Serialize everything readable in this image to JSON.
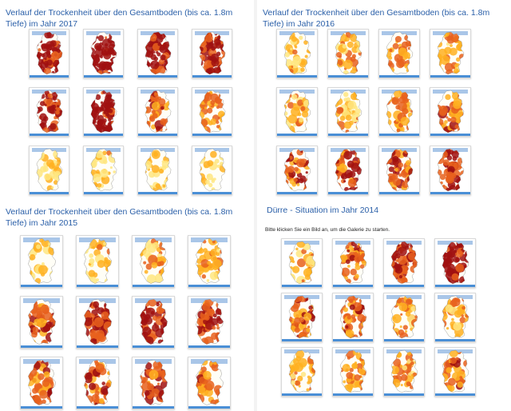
{
  "colors": {
    "title": "#2a5fa8",
    "none": "#fffef6",
    "low": "#ffe680",
    "moderate": "#ffb020",
    "severe": "#e8601c",
    "extreme": "#a01010",
    "header_strip": "#a9c6e8",
    "bottom_rule": "#4a8fd6"
  },
  "icons": {
    "map_thumbnail": "germany-drought-map-icon"
  },
  "panels": [
    {
      "title": "Verlauf der Trockenheit über den Gesamtboden (bis ca. 1.8m Tiefe) im Jahr 2017",
      "note": "",
      "maps_drought_level": [
        [
          0.85,
          0.9,
          0.85,
          0.8
        ],
        [
          0.75,
          0.9,
          0.55,
          0.45
        ],
        [
          0.18,
          0.22,
          0.2,
          0.12
        ]
      ]
    },
    {
      "title": "Verlauf der Trockenheit über den Gesamtboden (bis ca. 1.8m Tiefe) im Jahr 2016",
      "note": "",
      "maps_drought_level": [
        [
          0.3,
          0.35,
          0.4,
          0.38
        ],
        [
          0.3,
          0.35,
          0.42,
          0.5
        ],
        [
          0.6,
          0.65,
          0.6,
          0.7
        ]
      ]
    },
    {
      "title": "Verlauf der Trockenheit über den Gesamtboden (bis ca. 1.8m Tiefe) im Jahr 2015",
      "note": "",
      "maps_drought_level": [
        [
          0.15,
          0.25,
          0.35,
          0.4
        ],
        [
          0.55,
          0.75,
          0.7,
          0.65
        ],
        [
          0.55,
          0.6,
          0.65,
          0.55
        ]
      ]
    },
    {
      "title": "Dürre - Situation im Jahr 2014",
      "note": "Bitte klicken Sie ein Bild an, um die Galerie zu starten.",
      "maps_drought_level": [
        [
          0.3,
          0.55,
          0.75,
          0.9
        ],
        [
          0.55,
          0.6,
          0.4,
          0.35
        ],
        [
          0.35,
          0.45,
          0.4,
          0.5
        ]
      ]
    }
  ]
}
